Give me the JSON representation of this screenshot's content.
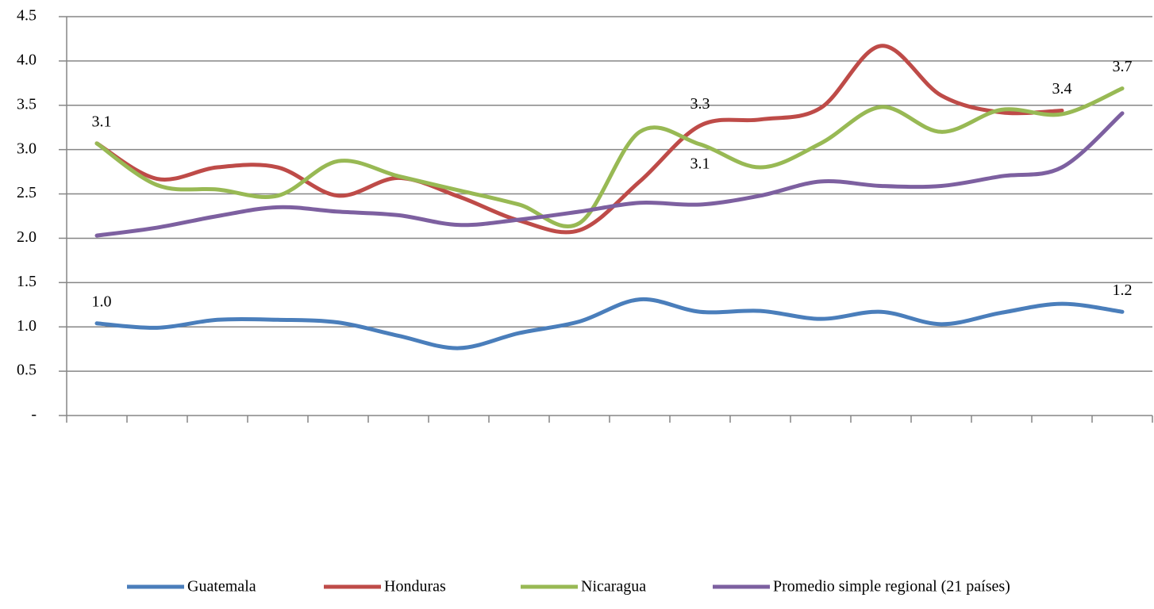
{
  "chart_data": {
    "type": "line",
    "categories": [
      null,
      null,
      null,
      null,
      null,
      null,
      null,
      null,
      null,
      null,
      null,
      null,
      null,
      null,
      null,
      null,
      null,
      null
    ],
    "series": [
      {
        "name": "Guatemala",
        "color": "#4a7ebb",
        "values": [
          1.04,
          0.99,
          1.08,
          1.08,
          1.05,
          0.9,
          0.76,
          0.93,
          1.06,
          1.31,
          1.17,
          1.18,
          1.09,
          1.17,
          1.03,
          1.16,
          1.26,
          1.17
        ],
        "value_labels": [
          "1.0",
          null,
          null,
          null,
          null,
          null,
          null,
          null,
          null,
          null,
          null,
          null,
          null,
          null,
          null,
          null,
          null,
          "1.2"
        ]
      },
      {
        "name": "Honduras",
        "color": "#be4b48",
        "values": [
          3.07,
          2.67,
          2.8,
          2.8,
          2.48,
          2.68,
          2.47,
          2.2,
          2.09,
          2.64,
          3.27,
          3.34,
          3.47,
          4.17,
          3.61,
          3.42,
          3.44,
          null
        ],
        "value_labels": [
          null,
          null,
          null,
          null,
          null,
          null,
          null,
          null,
          null,
          null,
          "3.3",
          null,
          null,
          null,
          null,
          null,
          "3.4",
          null
        ]
      },
      {
        "name": "Nicaragua",
        "color": "#98b954",
        "values": [
          3.07,
          2.6,
          2.55,
          2.48,
          2.87,
          2.7,
          2.54,
          2.38,
          2.17,
          3.2,
          3.06,
          2.8,
          3.07,
          3.48,
          3.2,
          3.45,
          3.4,
          3.69
        ],
        "value_labels": [
          "3.1",
          null,
          null,
          null,
          null,
          null,
          null,
          null,
          null,
          null,
          "3.1",
          null,
          null,
          null,
          null,
          null,
          null,
          "3.7"
        ]
      },
      {
        "name": "Promedio simple regional (21 países)",
        "color": "#7d60a0",
        "values": [
          2.03,
          2.12,
          2.25,
          2.35,
          2.3,
          2.26,
          2.15,
          2.21,
          2.3,
          2.4,
          2.38,
          2.48,
          2.64,
          2.59,
          2.59,
          2.7,
          2.8,
          3.41
        ]
      }
    ],
    "ylim": [
      0,
      4.5
    ],
    "yticks": [
      {
        "value": 0,
        "label": "-"
      },
      0.5,
      {
        "value": 1.0,
        "label": "1.0"
      },
      1.5,
      {
        "value": 2.0,
        "label": "2.0"
      },
      2.5,
      {
        "value": 3.0,
        "label": "3.0"
      },
      3.5,
      {
        "value": 4.0,
        "label": "4.0"
      },
      4.5
    ],
    "grid": true,
    "legend": "bottom"
  }
}
